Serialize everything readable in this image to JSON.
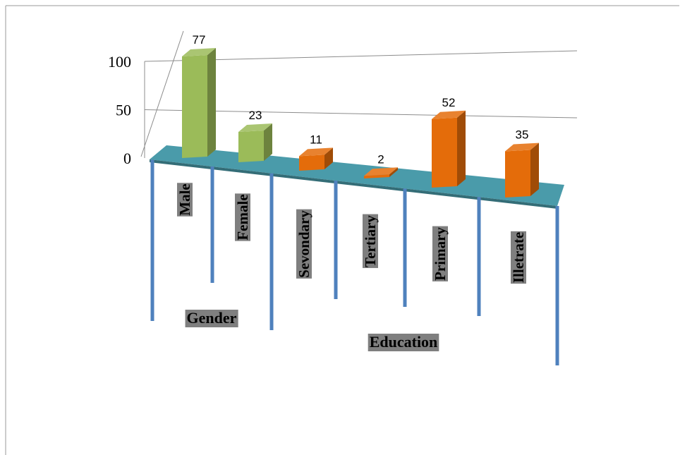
{
  "chart_data": {
    "type": "bar",
    "categories": [
      "Male",
      "Female",
      "Sevondary",
      "Tertiary",
      "Primary",
      "Illetrate"
    ],
    "values": [
      77,
      23,
      11,
      2,
      52,
      35
    ],
    "groups": [
      {
        "label": "Gender",
        "categories": [
          "Male",
          "Female"
        ],
        "color": "#9bbb59"
      },
      {
        "label": "Education",
        "categories": [
          "Sevondary",
          "Tertiary",
          "Primary",
          "Illetrate"
        ],
        "color": "#e46c0a"
      }
    ],
    "y_ticks": [
      "0",
      "50",
      "100"
    ],
    "ylim": [
      0,
      100
    ],
    "grid": true,
    "legend": "none",
    "title": "",
    "xlabel": "",
    "ylabel": ""
  },
  "colors": {
    "floor": "#4a9baa",
    "divider": "#4f81bd",
    "label_bg": "#7f7f7f",
    "gender": "#9bbb59",
    "education": "#e46c0a"
  }
}
